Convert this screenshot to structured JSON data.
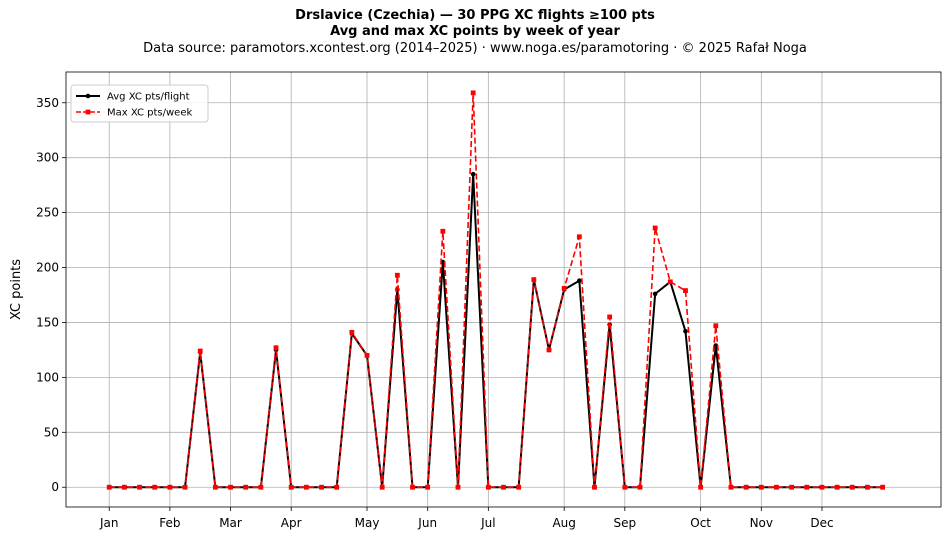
{
  "header": {
    "title": "Drslavice (Czechia)  —  30 PPG XC flights ≥100 pts",
    "subtitle": "Avg and max XC points by week of year",
    "source": "Data source: paramotors.xcontest.org (2014–2025)  ·  www.noga.es/paramotoring  ·  © 2025 Rafał Noga"
  },
  "chart_data": {
    "type": "line",
    "title": "Drslavice (Czechia)  —  30 PPG XC flights ≥100 pts",
    "subtitle": "Avg and max XC points by week of year",
    "xlabel": "",
    "ylabel": "XC points",
    "x_ticks": [
      {
        "label": "Jan",
        "week": 1
      },
      {
        "label": "Feb",
        "week": 5
      },
      {
        "label": "Mar",
        "week": 9
      },
      {
        "label": "Apr",
        "week": 13
      },
      {
        "label": "May",
        "week": 18
      },
      {
        "label": "Jun",
        "week": 22
      },
      {
        "label": "Jul",
        "week": 26
      },
      {
        "label": "Aug",
        "week": 31
      },
      {
        "label": "Sep",
        "week": 35
      },
      {
        "label": "Oct",
        "week": 40
      },
      {
        "label": "Nov",
        "week": 44
      },
      {
        "label": "Dec",
        "week": 48
      }
    ],
    "y_ticks": [
      0,
      50,
      100,
      150,
      200,
      250,
      300,
      350
    ],
    "xlim": [
      -1.85,
      55.85
    ],
    "ylim": [
      -18,
      378
    ],
    "grid": true,
    "legend_position": "upper-left",
    "x": [
      1,
      2,
      3,
      4,
      5,
      6,
      7,
      8,
      9,
      10,
      11,
      12,
      13,
      14,
      15,
      16,
      17,
      18,
      19,
      20,
      21,
      22,
      23,
      24,
      25,
      26,
      27,
      28,
      29,
      30,
      31,
      32,
      33,
      34,
      35,
      36,
      37,
      38,
      39,
      40,
      41,
      42,
      43,
      44,
      45,
      46,
      47,
      48,
      49,
      50,
      51,
      52
    ],
    "series": [
      {
        "name": "Avg XC pts/flight",
        "color": "#000000",
        "style": "solid",
        "marker": "circle",
        "values": [
          0,
          0,
          0,
          0,
          0,
          0,
          123,
          0,
          0,
          0,
          0,
          125,
          0,
          0,
          0,
          0,
          140,
          120,
          0,
          180,
          0,
          0,
          205,
          0,
          285,
          0,
          0,
          0,
          189,
          125,
          180,
          188,
          0,
          148,
          0,
          0,
          176,
          187,
          142,
          0,
          129,
          0,
          0,
          0,
          0,
          0,
          0,
          0,
          0,
          0,
          0,
          0
        ]
      },
      {
        "name": "Max XC pts/week",
        "color": "#ff0000",
        "style": "dashed",
        "marker": "square",
        "values": [
          0,
          0,
          0,
          0,
          0,
          0,
          124,
          0,
          0,
          0,
          0,
          127,
          0,
          0,
          0,
          0,
          141,
          120,
          0,
          193,
          0,
          0,
          233,
          0,
          359,
          0,
          0,
          0,
          189,
          125,
          181,
          228,
          0,
          155,
          0,
          0,
          236,
          187,
          179,
          0,
          147,
          0,
          0,
          0,
          0,
          0,
          0,
          0,
          0,
          0,
          0,
          0
        ]
      }
    ]
  }
}
